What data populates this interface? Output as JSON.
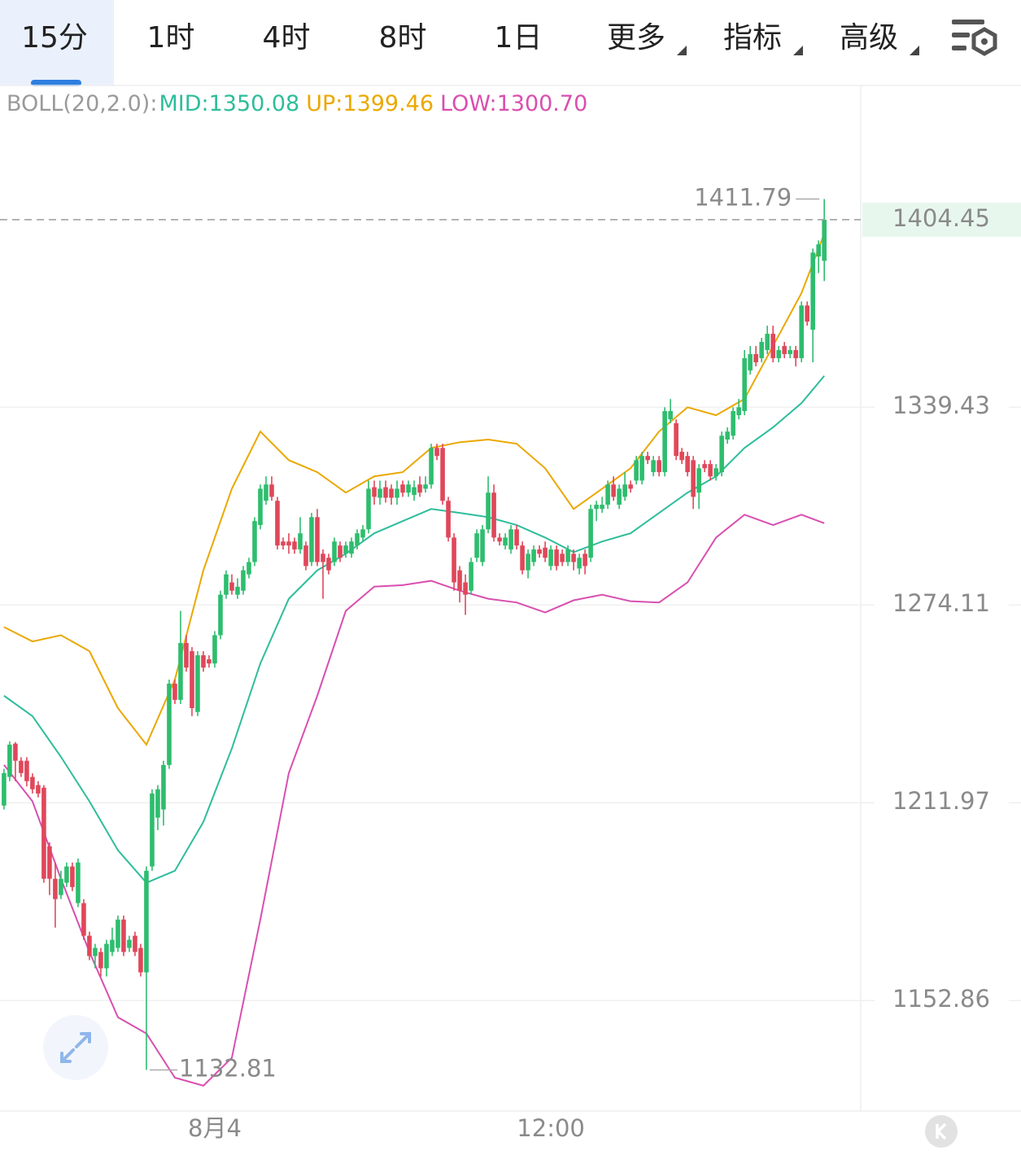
{
  "toolbar": {
    "tabs": [
      "15分",
      "1时",
      "4时",
      "8时",
      "1日",
      "更多",
      "指标",
      "高级"
    ],
    "active_tab": 0
  },
  "chart_data": {
    "type": "candlestick",
    "indicator": "BOLL(20,2.0):",
    "up_color": "#2ebd6e",
    "down_color": "#e0475a",
    "candles": [
      [
        1211.1,
        1222.4,
        1209.9,
        1221.1
      ],
      [
        1219.9,
        1230.9,
        1218.6,
        1229.9
      ],
      [
        1230.2,
        1230.7,
        1218.6,
        1224.9
      ],
      [
        1224.9,
        1226,
        1219.9,
        1221.1
      ],
      [
        1224.9,
        1226,
        1217,
        1218.6
      ],
      [
        1219.9,
        1221,
        1214.8,
        1216.1
      ],
      [
        1217.4,
        1218.6,
        1213.6,
        1214.8
      ],
      [
        1216.6,
        1217.4,
        1187.7,
        1188.9
      ],
      [
        1198.7,
        1199.9,
        1184.0,
        1188.9
      ],
      [
        1188.9,
        1193.8,
        1174.3,
        1182.8
      ],
      [
        1184.0,
        1191.3,
        1182.8,
        1188.9
      ],
      [
        1187.7,
        1193.8,
        1186.4,
        1192.6
      ],
      [
        1192.6,
        1193.8,
        1185.2,
        1186.4
      ],
      [
        1181.6,
        1195,
        1180.4,
        1193.8
      ],
      [
        1181.6,
        1182.8,
        1170.7,
        1171.9
      ],
      [
        1171.9,
        1173.1,
        1164.7,
        1165.9
      ],
      [
        1165.9,
        1169.5,
        1162.3,
        1168.3
      ],
      [
        1167.1,
        1168.3,
        1159.9,
        1162.3
      ],
      [
        1162.3,
        1170.7,
        1159.9,
        1169.5
      ],
      [
        1167.1,
        1174.3,
        1165.9,
        1170.7
      ],
      [
        1168.3,
        1177.9,
        1167.1,
        1176.7
      ],
      [
        1176.7,
        1177.9,
        1165.9,
        1167.1
      ],
      [
        1168.3,
        1171.9,
        1167.1,
        1170.7
      ],
      [
        1171.9,
        1173.1,
        1165.9,
        1167.1
      ],
      [
        1168.3,
        1169.5,
        1159.9,
        1161.1
      ],
      [
        1161.1,
        1192.6,
        1132.81,
        1191.3
      ],
      [
        1192.6,
        1216.1,
        1191.3,
        1214.8
      ],
      [
        1207.4,
        1217.4,
        1203.6,
        1216.1
      ],
      [
        1209.9,
        1224.9,
        1205,
        1223.6
      ],
      [
        1223.6,
        1250.3,
        1222.4,
        1249.0
      ],
      [
        1249.0,
        1250.3,
        1242.6,
        1243.9
      ],
      [
        1243.9,
        1272.2,
        1242.6,
        1261.9
      ],
      [
        1261.9,
        1264.4,
        1252.8,
        1254.1
      ],
      [
        1259.3,
        1260.6,
        1238.8,
        1241.3
      ],
      [
        1240.1,
        1259.3,
        1238.8,
        1258.0
      ],
      [
        1258.0,
        1259.3,
        1252.8,
        1254.1
      ],
      [
        1256.7,
        1258.0,
        1254.1,
        1255.4
      ],
      [
        1255.4,
        1265.7,
        1254.1,
        1264.4
      ],
      [
        1264.4,
        1278.7,
        1263.1,
        1277.4
      ],
      [
        1277.4,
        1285.3,
        1276.1,
        1284.0
      ],
      [
        1281.4,
        1284.0,
        1277.4,
        1278.7
      ],
      [
        1277.4,
        1282.7,
        1276.1,
        1280.0
      ],
      [
        1278.7,
        1286.7,
        1277.4,
        1285.3
      ],
      [
        1284.0,
        1289.4,
        1282.7,
        1288.0
      ],
      [
        1288.0,
        1302.7,
        1286.7,
        1301.4
      ],
      [
        1300.1,
        1313.5,
        1298.7,
        1312.1
      ],
      [
        1308.1,
        1316.2,
        1306.8,
        1313.5
      ],
      [
        1313.5,
        1316.2,
        1308.1,
        1309.4
      ],
      [
        1308.1,
        1309.4,
        1292.1,
        1293.4
      ],
      [
        1294.7,
        1296,
        1292.1,
        1293.4
      ],
      [
        1294.7,
        1297.4,
        1290.7,
        1293.4
      ],
      [
        1294.7,
        1296,
        1290.7,
        1292.1
      ],
      [
        1292.1,
        1302.7,
        1290.7,
        1297.4
      ],
      [
        1293.4,
        1294.7,
        1285.3,
        1286.7
      ],
      [
        1288.0,
        1304.1,
        1286.7,
        1302.7
      ],
      [
        1302.7,
        1305.4,
        1286.7,
        1288.0
      ],
      [
        1290.7,
        1292.1,
        1276.1,
        1288.0
      ],
      [
        1289.4,
        1290.7,
        1284.0,
        1285.3
      ],
      [
        1288.0,
        1296,
        1286.7,
        1294.7
      ],
      [
        1293.4,
        1294.7,
        1288,
        1289.4
      ],
      [
        1290.7,
        1294.7,
        1289.4,
        1293.4
      ],
      [
        1290.7,
        1296,
        1289.4,
        1294.7
      ],
      [
        1293.4,
        1298.7,
        1292.1,
        1297.4
      ],
      [
        1296.0,
        1300.1,
        1294.7,
        1298.7
      ],
      [
        1298.7,
        1314.8,
        1297.4,
        1312.1
      ],
      [
        1312.6,
        1314.8,
        1306.8,
        1309.4
      ],
      [
        1309.1,
        1314.8,
        1306.8,
        1312.1
      ],
      [
        1312.6,
        1314.8,
        1307.5,
        1309.1
      ],
      [
        1312.1,
        1313.5,
        1306.8,
        1309.1
      ],
      [
        1309.1,
        1314.8,
        1306.8,
        1312.1
      ],
      [
        1313.5,
        1314.8,
        1309.4,
        1310.8
      ],
      [
        1310.8,
        1314.8,
        1309.4,
        1313.5
      ],
      [
        1310.0,
        1314.8,
        1308.1,
        1312.6
      ],
      [
        1313.5,
        1316.2,
        1309.4,
        1310.8
      ],
      [
        1312.1,
        1316.2,
        1310.8,
        1313.5
      ],
      [
        1313.5,
        1327.1,
        1312.1,
        1325.7
      ],
      [
        1325.7,
        1327.1,
        1321.6,
        1323.0
      ],
      [
        1325.7,
        1327.1,
        1306.8,
        1308.1
      ],
      [
        1308.1,
        1309.4,
        1294.7,
        1296.0
      ],
      [
        1296.0,
        1297.4,
        1278.7,
        1281.4
      ],
      [
        1285.3,
        1286.7,
        1274.9,
        1278.7
      ],
      [
        1281.4,
        1284.0,
        1270.9,
        1277.4
      ],
      [
        1278.7,
        1289.4,
        1277.4,
        1288.0
      ],
      [
        1289.4,
        1298.7,
        1288.0,
        1297.4
      ],
      [
        1288.0,
        1300.1,
        1286.7,
        1298.7
      ],
      [
        1298.7,
        1316.2,
        1297.4,
        1310.8
      ],
      [
        1310.8,
        1313.5,
        1294.7,
        1296.0
      ],
      [
        1296.0,
        1297.4,
        1293.4,
        1294.7
      ],
      [
        1293.4,
        1297.4,
        1292.1,
        1296.0
      ],
      [
        1292.1,
        1300.1,
        1290.7,
        1298.7
      ],
      [
        1298.7,
        1300.1,
        1292.1,
        1293.4
      ],
      [
        1293.4,
        1294.7,
        1284.0,
        1285.3
      ],
      [
        1285.3,
        1292.1,
        1282.7,
        1290.7
      ],
      [
        1288.0,
        1293.4,
        1286.7,
        1292.1
      ],
      [
        1292.1,
        1293.4,
        1289.4,
        1290.7
      ],
      [
        1292.7,
        1294.7,
        1288.0,
        1289.4
      ],
      [
        1286.7,
        1293.4,
        1285.3,
        1292.1
      ],
      [
        1292.1,
        1293.4,
        1285.3,
        1286.7
      ],
      [
        1290.7,
        1292.1,
        1286.7,
        1288.0
      ],
      [
        1288.0,
        1293.4,
        1286.7,
        1292.1
      ],
      [
        1290.7,
        1292.1,
        1285.3,
        1288.0
      ],
      [
        1285.9,
        1290.7,
        1284.0,
        1289.4
      ],
      [
        1290.7,
        1292.1,
        1284.0,
        1286.7
      ],
      [
        1289.4,
        1306.8,
        1288.0,
        1305.4
      ],
      [
        1305.4,
        1308.1,
        1301.4,
        1306.8
      ],
      [
        1305.4,
        1309.4,
        1304.1,
        1306.8
      ],
      [
        1306.8,
        1314.8,
        1305.4,
        1313.5
      ],
      [
        1313.5,
        1316.2,
        1308.1,
        1309.4
      ],
      [
        1306.8,
        1313.5,
        1305.4,
        1312.1
      ],
      [
        1309.4,
        1317.6,
        1308.1,
        1313.5
      ],
      [
        1313.5,
        1314.8,
        1310.8,
        1312.1
      ],
      [
        1314.8,
        1323.0,
        1313.5,
        1321.6
      ],
      [
        1314.8,
        1324.4,
        1313.5,
        1323.0
      ],
      [
        1323.0,
        1324.4,
        1320.3,
        1321.6
      ],
      [
        1317.6,
        1323.0,
        1316.2,
        1321.6
      ],
      [
        1321.6,
        1323.0,
        1316.2,
        1317.6
      ],
      [
        1317.6,
        1339.4,
        1316.2,
        1338.1
      ],
      [
        1335.3,
        1342.2,
        1334.0,
        1338.1
      ],
      [
        1334.0,
        1335.3,
        1321.6,
        1323.0
      ],
      [
        1324.4,
        1325.7,
        1320.3,
        1321.6
      ],
      [
        1323.0,
        1324.4,
        1316.2,
        1317.6
      ],
      [
        1321.6,
        1323.0,
        1305.4,
        1309.4
      ],
      [
        1310.8,
        1320.3,
        1305.4,
        1318.9
      ],
      [
        1320.3,
        1321.6,
        1317.6,
        1318.9
      ],
      [
        1320.3,
        1321.6,
        1314.8,
        1316.2
      ],
      [
        1316.2,
        1320.3,
        1314.8,
        1318.9
      ],
      [
        1317.6,
        1331.2,
        1316.2,
        1329.8
      ],
      [
        1328.5,
        1332.6,
        1327.1,
        1331.2
      ],
      [
        1329.8,
        1339.4,
        1328.5,
        1338.1
      ],
      [
        1336.7,
        1342.2,
        1335.3,
        1339.4
      ],
      [
        1338.1,
        1358.9,
        1336.7,
        1356.1
      ],
      [
        1351.9,
        1360.3,
        1350.5,
        1357.5
      ],
      [
        1357.5,
        1360.3,
        1353.3,
        1354.7
      ],
      [
        1356.1,
        1363.1,
        1354.7,
        1361.7
      ],
      [
        1358.9,
        1367.3,
        1357.5,
        1364.5
      ],
      [
        1364.5,
        1367.3,
        1354.7,
        1356.1
      ],
      [
        1356.1,
        1360.3,
        1354.7,
        1358.9
      ],
      [
        1360.3,
        1361.7,
        1356.1,
        1357.5
      ],
      [
        1357.5,
        1360.3,
        1356.1,
        1358.9
      ],
      [
        1358.9,
        1360.3,
        1353.3,
        1356.1
      ],
      [
        1356.1,
        1375.7,
        1354.7,
        1374.3
      ],
      [
        1374.3,
        1375.7,
        1367.3,
        1368.7
      ],
      [
        1365.9,
        1394.2,
        1354.7,
        1392.8
      ],
      [
        1391.4,
        1397.1,
        1385.6,
        1395.7
      ],
      [
        1389.9,
        1411.79,
        1382.8,
        1404.45
      ]
    ],
    "series": [
      {
        "name": "MID:1350.08",
        "color": "#2ebd9b",
        "x": [
          0,
          5,
          10,
          15,
          20,
          25,
          30,
          35,
          40,
          45,
          50,
          55,
          60,
          65,
          70,
          75,
          80,
          85,
          90,
          95,
          100,
          105,
          110,
          115,
          120,
          125,
          130,
          135,
          140,
          144
        ],
        "values": [
          1245.2,
          1238.8,
          1226.1,
          1212.4,
          1197.5,
          1187.7,
          1191.3,
          1206.1,
          1228.7,
          1255.4,
          1276.1,
          1285.3,
          1290.7,
          1297.4,
          1301.4,
          1305.4,
          1304.1,
          1302.7,
          1300.1,
          1296.0,
          1291.2,
          1294.7,
          1297.4,
          1304.1,
          1310.8,
          1316.2,
          1325.7,
          1332.6,
          1340.8,
          1350.08
        ]
      },
      {
        "name": "UP:1399.46",
        "color": "#eaa800",
        "x": [
          0,
          5,
          10,
          15,
          20,
          25,
          30,
          35,
          40,
          45,
          50,
          55,
          60,
          65,
          70,
          75,
          80,
          85,
          90,
          95,
          100,
          105,
          110,
          115,
          120,
          125,
          130,
          135,
          140,
          144
        ],
        "values": [
          1267.0,
          1262.4,
          1264.4,
          1259.3,
          1241.3,
          1229.9,
          1250.3,
          1285.3,
          1312.1,
          1331.2,
          1321.6,
          1317.6,
          1310.8,
          1316.2,
          1317.6,
          1325.7,
          1327.6,
          1328.5,
          1327.1,
          1318.9,
          1305.4,
          1312.1,
          1318.9,
          1331.2,
          1339.4,
          1336.7,
          1342.2,
          1360.3,
          1378.6,
          1399.46
        ]
      },
      {
        "name": "LOW:1300.70",
        "color": "#d94fb0",
        "x": [
          0,
          5,
          10,
          15,
          20,
          25,
          30,
          35,
          40,
          45,
          50,
          55,
          60,
          65,
          70,
          75,
          80,
          85,
          90,
          95,
          100,
          105,
          110,
          115,
          120,
          125,
          130,
          135,
          140,
          144
        ],
        "values": [
          1223.6,
          1212.4,
          1188.9,
          1167.1,
          1148.0,
          1143.3,
          1130.6,
          1128.3,
          1136.3,
          1176.7,
          1221.1,
          1245.2,
          1272.2,
          1280.0,
          1280.5,
          1281.9,
          1278.7,
          1276.1,
          1274.9,
          1271.7,
          1275.6,
          1277.4,
          1275.3,
          1274.9,
          1281.4,
          1296.0,
          1303.5,
          1300.1,
          1303.5,
          1300.7
        ]
      }
    ],
    "xlim": [
      -0.7,
      150.4
    ],
    "xticks": [
      {
        "value": 37,
        "label": "8月4"
      },
      {
        "value": 96,
        "label": "12:00"
      }
    ],
    "ylim": [
      1121.1,
      1452.9
    ],
    "log_scale": true,
    "yticks": [
      1339.43,
      1274.11,
      1211.97,
      1152.86
    ],
    "grid": true
  }
}
